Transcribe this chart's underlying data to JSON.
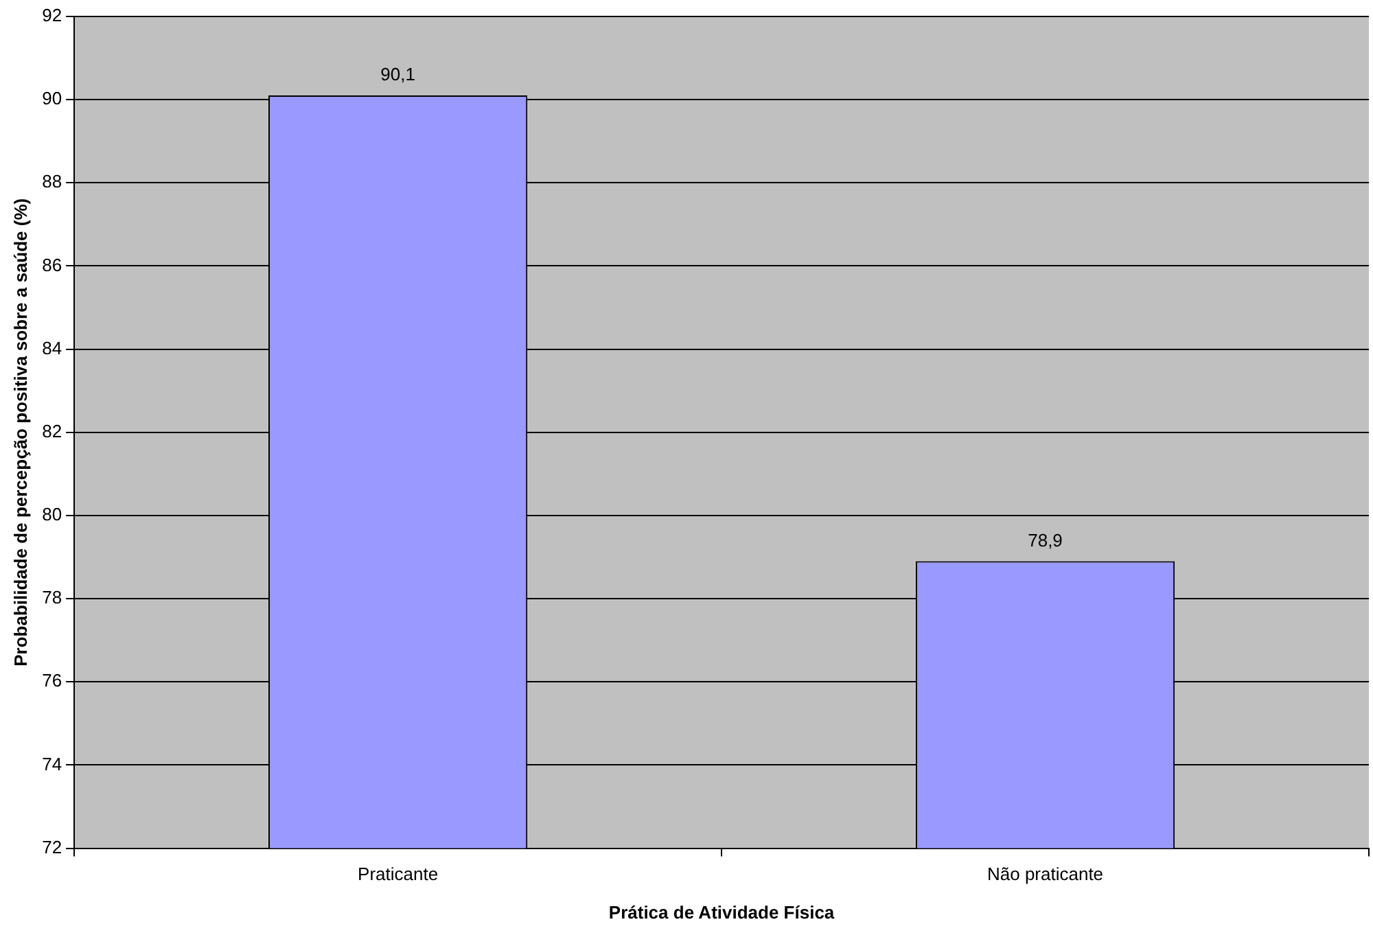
{
  "chart_data": {
    "type": "bar",
    "xlabel": "Prática de Atividade Física",
    "ylabel": "Probabilidade de percepção positiva sobre a saúde (%)",
    "categories": [
      "Praticante",
      "Não praticante"
    ],
    "values": [
      90.1,
      78.9
    ],
    "value_labels": [
      "90,1",
      "78,9"
    ],
    "color": "#9999ff",
    "ylim": [
      72,
      92
    ],
    "yticks": [
      72,
      74,
      76,
      78,
      80,
      82,
      84,
      86,
      88,
      90,
      92
    ],
    "grid": "y",
    "legend": false
  }
}
